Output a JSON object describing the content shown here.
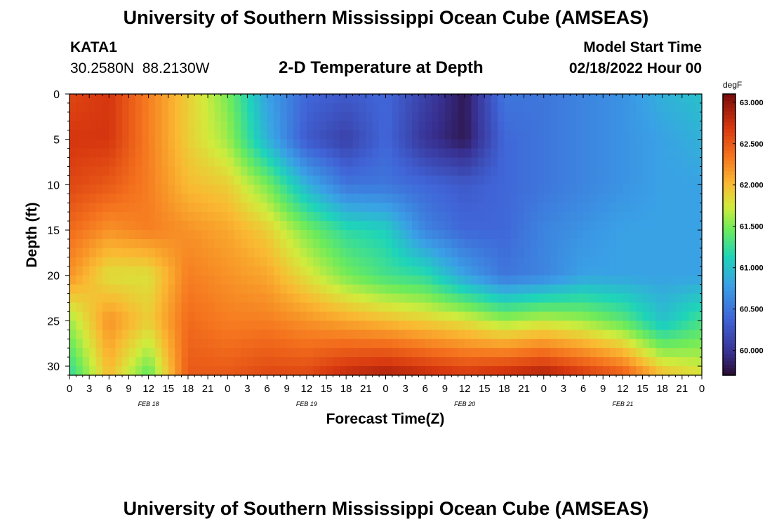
{
  "header": {
    "title": "University of Southern Mississippi Ocean Cube (AMSEAS)",
    "station": "KATA1",
    "coords": "30.2580N  88.2130W",
    "model_label": "Model Start Time",
    "model_time": "02/18/2022 Hour 00",
    "footer_title": "University of Southern Mississippi Ocean Cube (AMSEAS)"
  },
  "chart_data": {
    "type": "heatmap",
    "title": "2-D Temperature at Depth",
    "xlabel": "Forecast Time(Z)",
    "ylabel": "Depth (ft)",
    "xlim": [
      0,
      96
    ],
    "ylim": [
      0,
      31
    ],
    "x_tick_hours": [
      0,
      3,
      6,
      9,
      12,
      15,
      18,
      21,
      24,
      27,
      30,
      33,
      36,
      39,
      42,
      45,
      48,
      51,
      54,
      57,
      60,
      63,
      66,
      69,
      72,
      75,
      78,
      81,
      84,
      87,
      90,
      93,
      96
    ],
    "x_tick_labels": [
      "0",
      "3",
      "6",
      "9",
      "12",
      "15",
      "18",
      "21",
      "0",
      "3",
      "6",
      "9",
      "12",
      "15",
      "18",
      "21",
      "0",
      "3",
      "6",
      "9",
      "12",
      "15",
      "18",
      "21",
      "0",
      "3",
      "6",
      "9",
      "12",
      "15",
      "18",
      "21",
      "0"
    ],
    "date_labels": [
      {
        "hour": 12,
        "label": "FEB 18"
      },
      {
        "hour": 36,
        "label": "FEB 19"
      },
      {
        "hour": 60,
        "label": "FEB 20"
      },
      {
        "hour": 84,
        "label": "FEB 21"
      }
    ],
    "y_ticks": [
      0,
      5,
      10,
      15,
      20,
      25,
      30
    ],
    "y_tick_labels": [
      "0",
      "5",
      "10",
      "15",
      "20",
      "25",
      "30"
    ],
    "colorbar": {
      "unit": "degF",
      "vmin": 59.7,
      "vmax": 63.1,
      "ticks": [
        60.0,
        60.5,
        61.0,
        61.5,
        62.0,
        62.5,
        63.0
      ],
      "tick_labels": [
        "60.000",
        "60.500",
        "61.000",
        "61.500",
        "62.000",
        "62.500",
        "63.000"
      ],
      "colormap": "turbo"
    },
    "grid_hours": [
      0,
      6,
      12,
      18,
      24,
      30,
      36,
      42,
      48,
      54,
      60,
      66,
      72,
      78,
      84,
      90,
      96
    ],
    "grid_depths": [
      0,
      5,
      10,
      15,
      20,
      25,
      31
    ],
    "temperature_degF": [
      [
        62.6,
        62.7,
        62.3,
        61.9,
        61.5,
        60.8,
        60.4,
        60.3,
        60.4,
        60.1,
        59.8,
        60.5,
        60.5,
        60.6,
        60.7,
        60.9,
        61.0
      ],
      [
        62.7,
        62.7,
        62.3,
        61.9,
        61.6,
        60.9,
        60.3,
        60.1,
        60.4,
        60.0,
        59.8,
        60.4,
        60.5,
        60.6,
        60.7,
        60.8,
        60.9
      ],
      [
        62.6,
        62.5,
        62.3,
        62.0,
        61.9,
        61.5,
        60.9,
        60.5,
        60.5,
        60.4,
        60.3,
        60.4,
        60.5,
        60.6,
        60.7,
        60.8,
        60.8
      ],
      [
        62.4,
        62.2,
        62.3,
        62.2,
        62.1,
        61.9,
        61.5,
        61.2,
        61.1,
        60.6,
        60.4,
        60.4,
        60.6,
        60.7,
        60.8,
        60.8,
        60.8
      ],
      [
        62.2,
        61.8,
        61.8,
        62.3,
        62.2,
        62.1,
        61.8,
        61.5,
        61.3,
        61.2,
        60.8,
        60.5,
        60.6,
        60.8,
        60.8,
        60.8,
        60.8
      ],
      [
        61.6,
        62.2,
        61.9,
        62.4,
        62.3,
        62.3,
        62.2,
        62.1,
        62.0,
        61.9,
        61.8,
        61.6,
        61.7,
        61.6,
        61.4,
        61.0,
        61.3
      ],
      [
        61.2,
        62.0,
        61.4,
        62.5,
        62.5,
        62.6,
        62.6,
        62.8,
        62.9,
        62.8,
        62.7,
        62.8,
        62.9,
        62.7,
        62.5,
        62.0,
        61.8
      ]
    ]
  }
}
